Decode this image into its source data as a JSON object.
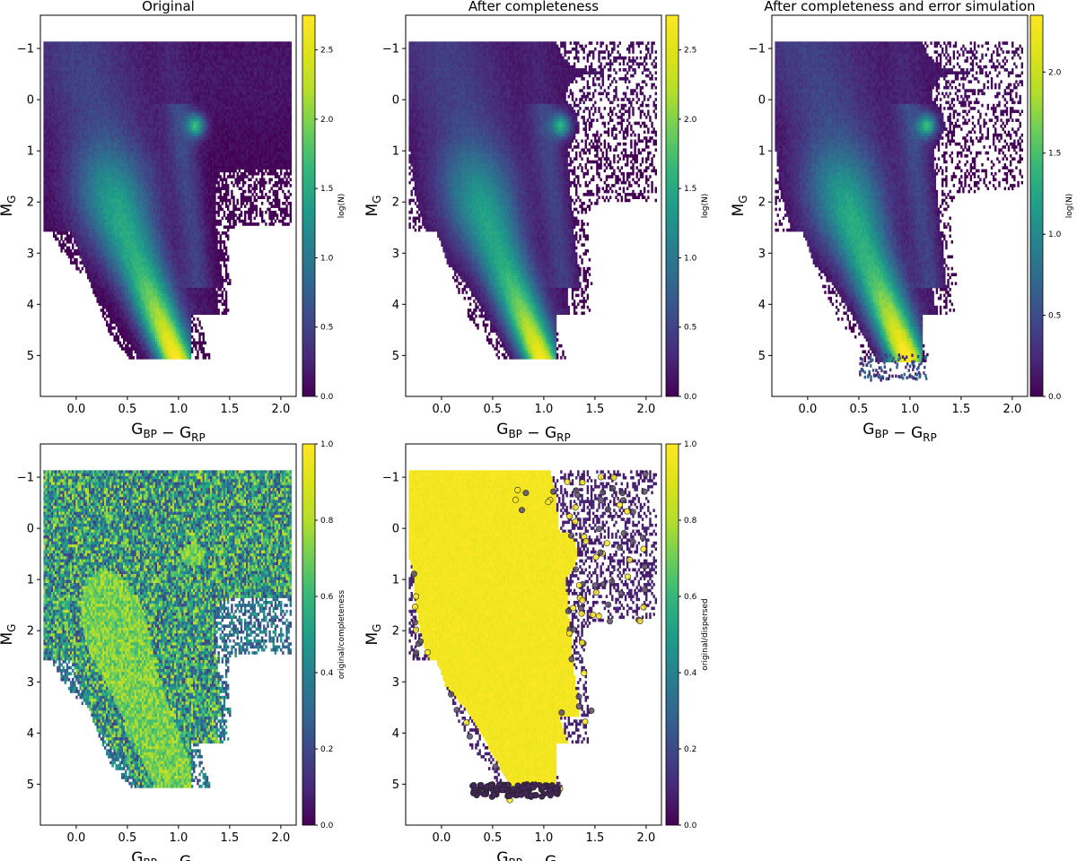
{
  "figure": {
    "colormap": "viridis",
    "background": "#ffffff"
  },
  "chart_data": [
    {
      "type": "heatmap",
      "title": "Original",
      "xlabel": "G_BP − G_RP",
      "ylabel": "M_G",
      "xlim": [
        -0.35,
        2.15
      ],
      "ylim": [
        5.8,
        -1.65
      ],
      "xticks": [
        "0.0",
        "0.5",
        "1.0",
        "1.5",
        "2.0"
      ],
      "xtick_values": [
        0.0,
        0.5,
        1.0,
        1.5,
        2.0
      ],
      "yticks": [
        "−1",
        "0",
        "1",
        "2",
        "3",
        "4",
        "5"
      ],
      "ytick_values": [
        -1,
        0,
        1,
        2,
        3,
        4,
        5
      ],
      "colorbar": {
        "label": "log(N)",
        "min": 0.0,
        "max": 2.75,
        "ticks": [
          "0.0",
          "0.5",
          "1.0",
          "1.5",
          "2.0",
          "2.5"
        ],
        "tick_values": [
          0.0,
          0.5,
          1.0,
          1.5,
          2.0,
          2.5
        ]
      },
      "density_variant": "original"
    },
    {
      "type": "heatmap",
      "title": "After completeness",
      "xlabel": "G_BP − G_RP",
      "ylabel": "M_G",
      "xlim": [
        -0.35,
        2.15
      ],
      "ylim": [
        5.8,
        -1.65
      ],
      "xticks": [
        "0.0",
        "0.5",
        "1.0",
        "1.5",
        "2.0"
      ],
      "xtick_values": [
        0.0,
        0.5,
        1.0,
        1.5,
        2.0
      ],
      "yticks": [
        "−1",
        "0",
        "1",
        "2",
        "3",
        "4",
        "5"
      ],
      "ytick_values": [
        -1,
        0,
        1,
        2,
        3,
        4,
        5
      ],
      "colorbar": {
        "label": "log(N)",
        "min": 0.0,
        "max": 2.75,
        "ticks": [
          "0.0",
          "0.5",
          "1.0",
          "1.5",
          "2.0",
          "2.5"
        ],
        "tick_values": [
          0.0,
          0.5,
          1.0,
          1.5,
          2.0,
          2.5
        ]
      },
      "density_variant": "completeness"
    },
    {
      "type": "heatmap",
      "title": "After completeness and error simulation",
      "xlabel": "G_BP − G_RP",
      "ylabel": "M_G",
      "xlim": [
        -0.35,
        2.15
      ],
      "ylim": [
        5.8,
        -1.65
      ],
      "xticks": [
        "0.0",
        "0.5",
        "1.0",
        "1.5",
        "2.0"
      ],
      "xtick_values": [
        0.0,
        0.5,
        1.0,
        1.5,
        2.0
      ],
      "yticks": [
        "−1",
        "0",
        "1",
        "2",
        "3",
        "4",
        "5"
      ],
      "ytick_values": [
        -1,
        0,
        1,
        2,
        3,
        4,
        5
      ],
      "colorbar": {
        "label": "log(N)",
        "min": 0.0,
        "max": 2.35,
        "ticks": [
          "0.0",
          "0.5",
          "1.0",
          "1.5",
          "2.0"
        ],
        "tick_values": [
          0.0,
          0.5,
          1.0,
          1.5,
          2.0
        ]
      },
      "density_variant": "error"
    },
    {
      "type": "heatmap",
      "title": "",
      "xlabel": "G_BP − G_RP",
      "ylabel": "M_G",
      "xlim": [
        -0.35,
        2.15
      ],
      "ylim": [
        5.8,
        -1.65
      ],
      "xticks": [
        "0.0",
        "0.5",
        "1.0",
        "1.5",
        "2.0"
      ],
      "xtick_values": [
        0.0,
        0.5,
        1.0,
        1.5,
        2.0
      ],
      "yticks": [
        "−1",
        "0",
        "1",
        "2",
        "3",
        "4",
        "5"
      ],
      "ytick_values": [
        -1,
        0,
        1,
        2,
        3,
        4,
        5
      ],
      "colorbar": {
        "label": "original/completeness",
        "min": 0.0,
        "max": 1.0,
        "ticks": [
          "0.0",
          "0.2",
          "0.4",
          "0.6",
          "0.8",
          "1.0"
        ],
        "tick_values": [
          0.0,
          0.2,
          0.4,
          0.6,
          0.8,
          1.0
        ]
      },
      "density_variant": "ratio"
    },
    {
      "type": "heatmap",
      "title": "",
      "xlabel": "G_BP − G_RP",
      "ylabel": "M_G",
      "xlim": [
        -0.35,
        2.15
      ],
      "ylim": [
        5.8,
        -1.65
      ],
      "xticks": [
        "0.0",
        "0.5",
        "1.0",
        "1.5",
        "2.0"
      ],
      "xtick_values": [
        0.0,
        0.5,
        1.0,
        1.5,
        2.0
      ],
      "yticks": [
        "−1",
        "0",
        "1",
        "2",
        "3",
        "4",
        "5"
      ],
      "ytick_values": [
        -1,
        0,
        1,
        2,
        3,
        4,
        5
      ],
      "colorbar": {
        "label": "original/dispersed",
        "min": 0.0,
        "max": 1.0,
        "ticks": [
          "0.0",
          "0.2",
          "0.4",
          "0.6",
          "0.8",
          "1.0"
        ],
        "tick_values": [
          0.0,
          0.2,
          0.4,
          0.6,
          0.8,
          1.0
        ]
      },
      "density_variant": "dispersed"
    }
  ]
}
